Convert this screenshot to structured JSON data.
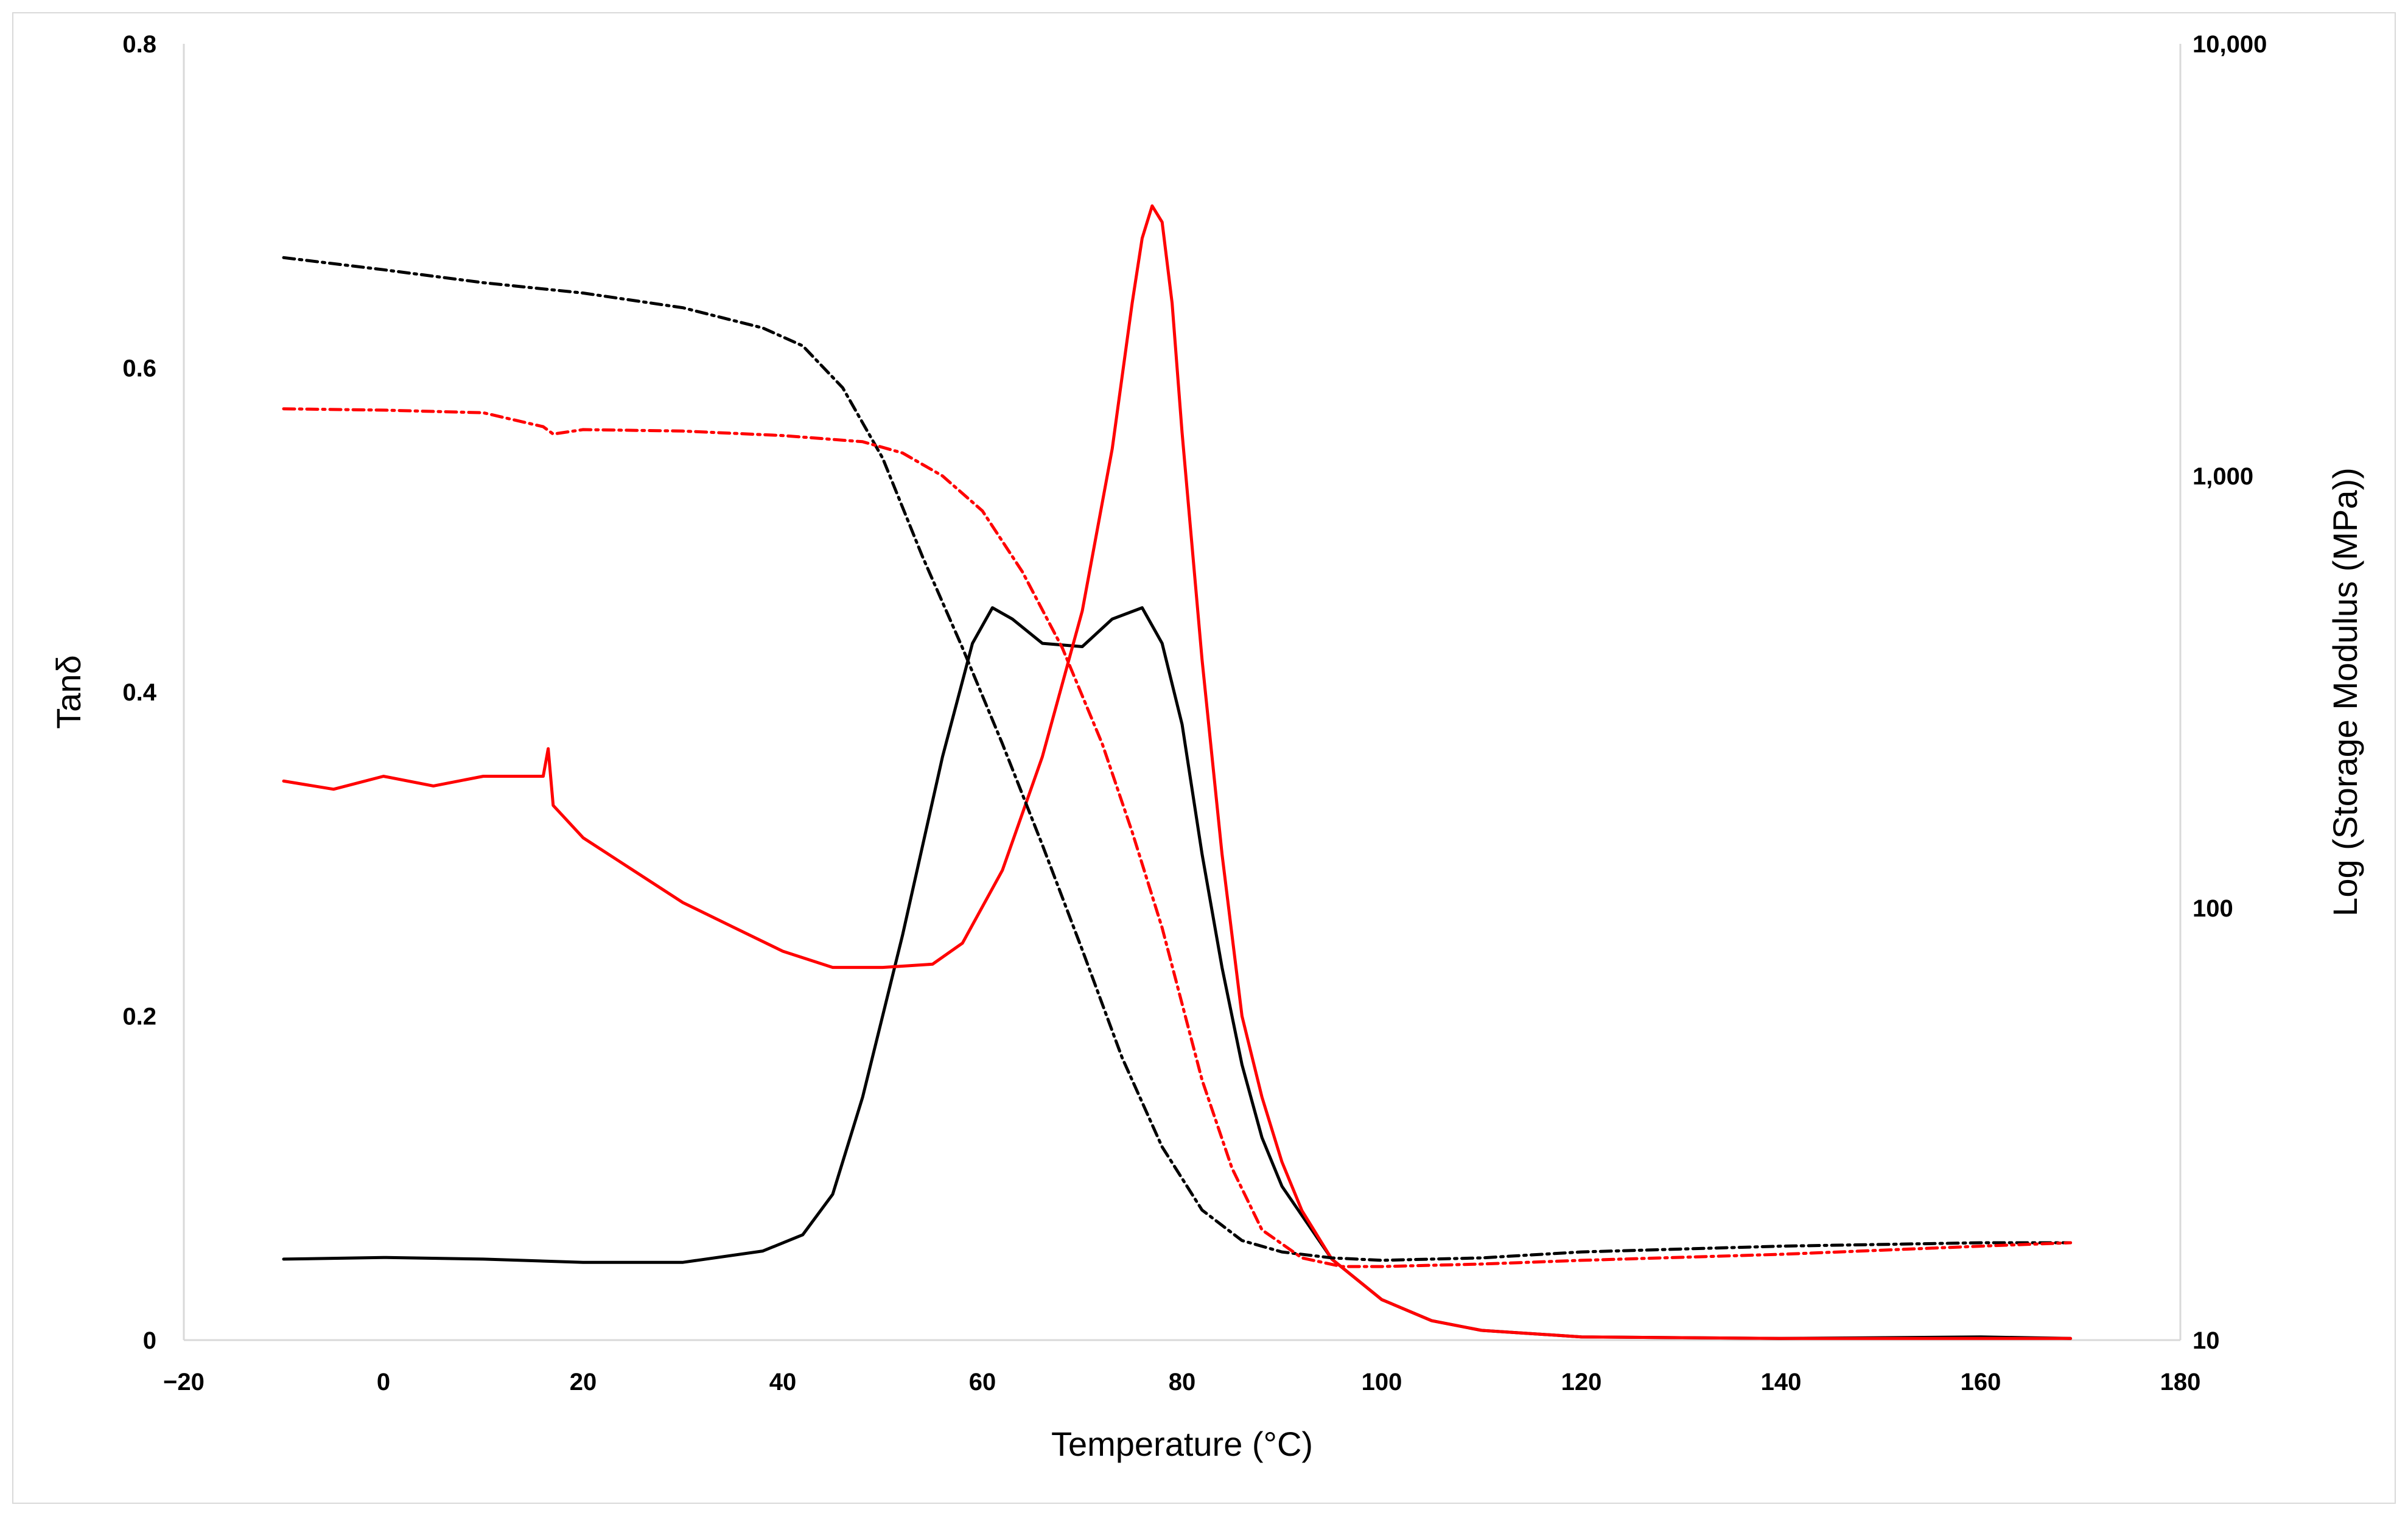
{
  "chart_data": {
    "type": "line",
    "title": "",
    "xlabel": "Temperature (°C)",
    "ylabel": "Tanδ",
    "y2label": "Log (Storage Modulus (MPa))",
    "xlim": [
      -20,
      180
    ],
    "ylim": [
      0,
      0.8
    ],
    "y2lim": [
      10,
      10000
    ],
    "y2scale": "log",
    "grid": false,
    "legend": "none",
    "x_ticks": [
      "−20",
      "0",
      "20",
      "40",
      "60",
      "80",
      "100",
      "120",
      "140",
      "160",
      "180"
    ],
    "y_ticks": [
      "0",
      "0.2",
      "0.4",
      "0.6",
      "0.8"
    ],
    "y2_ticks": [
      "10",
      "100",
      "1,000",
      "10,000"
    ],
    "series": [
      {
        "color": "#000000",
        "dash": "solid",
        "axis": "left",
        "x": [
          -10,
          0,
          10,
          20,
          30,
          38,
          42,
          45,
          48,
          52,
          56,
          59,
          61,
          63,
          66,
          70,
          73,
          76,
          78,
          80,
          82,
          84,
          86,
          88,
          90,
          95,
          100,
          105,
          110,
          120,
          140,
          160,
          169
        ],
        "y": [
          0.05,
          0.051,
          0.05,
          0.048,
          0.048,
          0.055,
          0.065,
          0.09,
          0.15,
          0.25,
          0.36,
          0.43,
          0.452,
          0.445,
          0.43,
          0.428,
          0.445,
          0.452,
          0.43,
          0.38,
          0.3,
          0.23,
          0.17,
          0.125,
          0.095,
          0.05,
          0.025,
          0.012,
          0.006,
          0.002,
          0.001,
          0.002,
          0.001
        ]
      },
      {
        "color": "#ff0000",
        "dash": "solid",
        "axis": "left",
        "x": [
          -10,
          -5,
          0,
          5,
          10,
          16,
          16.5,
          17,
          20,
          25,
          30,
          35,
          40,
          45,
          50,
          55,
          58,
          62,
          66,
          70,
          73,
          75,
          76,
          77,
          78,
          79,
          80,
          82,
          84,
          86,
          88,
          90,
          92,
          95,
          100,
          105,
          110,
          120,
          140,
          160,
          169
        ],
        "y": [
          0.345,
          0.34,
          0.348,
          0.342,
          0.348,
          0.348,
          0.365,
          0.33,
          0.31,
          0.29,
          0.27,
          0.255,
          0.24,
          0.23,
          0.23,
          0.232,
          0.245,
          0.29,
          0.36,
          0.45,
          0.55,
          0.64,
          0.68,
          0.7,
          0.69,
          0.64,
          0.56,
          0.42,
          0.3,
          0.2,
          0.15,
          0.11,
          0.08,
          0.05,
          0.025,
          0.012,
          0.006,
          0.002,
          0.001,
          0.001,
          0.001
        ]
      },
      {
        "color": "#000000",
        "dash": "dash-dot",
        "axis": "right",
        "x": [
          -10,
          0,
          10,
          20,
          30,
          38,
          42,
          46,
          50,
          54,
          58,
          62,
          66,
          70,
          74,
          78,
          82,
          86,
          90,
          95,
          100,
          110,
          120,
          140,
          160,
          169
        ],
        "y": [
          3200,
          3000,
          2800,
          2650,
          2450,
          2200,
          2000,
          1600,
          1100,
          650,
          400,
          240,
          140,
          80,
          45,
          28,
          20,
          17,
          16,
          15.5,
          15.3,
          15.5,
          16,
          16.5,
          16.8,
          16.8
        ]
      },
      {
        "color": "#ff0000",
        "dash": "dash-dot",
        "axis": "right",
        "x": [
          -10,
          0,
          10,
          16,
          17,
          20,
          30,
          40,
          48,
          52,
          56,
          60,
          64,
          68,
          72,
          75,
          78,
          80,
          82,
          85,
          88,
          92,
          96,
          100,
          110,
          120,
          140,
          160,
          169
        ],
        "y": [
          1430,
          1420,
          1400,
          1300,
          1250,
          1280,
          1270,
          1240,
          1200,
          1130,
          1000,
          830,
          600,
          400,
          240,
          150,
          90,
          60,
          40,
          25,
          18,
          15.5,
          14.8,
          14.8,
          15,
          15.3,
          15.8,
          16.5,
          16.8
        ]
      }
    ]
  }
}
